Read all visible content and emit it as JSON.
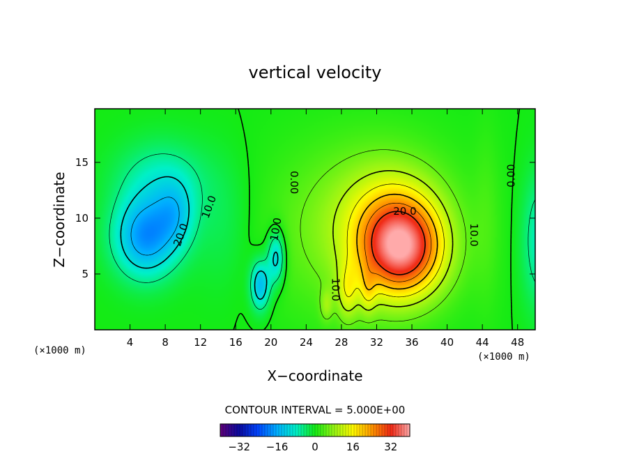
{
  "chart_data": {
    "type": "heatmap",
    "title": "vertical velocity",
    "xlabel": "X−coordinate",
    "ylabel": "Z−coordinate",
    "x_unit": "(×1000 m)",
    "xlim": [
      0,
      50
    ],
    "ylim": [
      0,
      19.8
    ],
    "x_ticks": [
      4,
      8,
      12,
      16,
      20,
      24,
      28,
      32,
      36,
      40,
      44,
      48
    ],
    "y_ticks": [
      5,
      10,
      15
    ],
    "contour_interval_text": "CONTOUR INTERVAL = 5.000E+00",
    "contour_interval": 5.0,
    "colorbar": {
      "range": [
        -40,
        40
      ],
      "ticks": [
        -32,
        -16,
        0,
        16,
        32
      ],
      "tick_labels": [
        "−32",
        "−16",
        "0",
        "16",
        "32"
      ]
    },
    "contour_labels": [
      {
        "text": "20.0",
        "x": 9.8,
        "z": 8.5,
        "rotate": -70
      },
      {
        "text": "10.0",
        "x": 13.0,
        "z": 11.0,
        "rotate": -70
      },
      {
        "text": "10.0",
        "x": 20.6,
        "z": 9.0,
        "rotate": -80
      },
      {
        "text": "0.00",
        "x": 22.6,
        "z": 13.2,
        "rotate": 90
      },
      {
        "text": "20.0",
        "x": 35.2,
        "z": 10.6,
        "rotate": 0
      },
      {
        "text": "10.0",
        "x": 43.0,
        "z": 8.5,
        "rotate": 90
      },
      {
        "text": "10.0",
        "x": 27.3,
        "z": 3.6,
        "rotate": 90
      },
      {
        "text": "0.00",
        "x": 47.3,
        "z": 13.8,
        "rotate": -90
      }
    ],
    "field_features": [
      {
        "kind": "downdraft",
        "x": 6.0,
        "z": 8.5,
        "peak": -22
      },
      {
        "kind": "downdraft",
        "x": 9.0,
        "z": 10.0,
        "peak": -20
      },
      {
        "kind": "downdraft",
        "x": 18.8,
        "z": 4.2,
        "peak": -16
      },
      {
        "kind": "downdraft",
        "x": 20.6,
        "z": 6.5,
        "peak": -15
      },
      {
        "kind": "updraft",
        "x": 34.8,
        "z": 7.0,
        "peak": 34
      },
      {
        "kind": "updraft",
        "x": 28.8,
        "z": 3.5,
        "peak": 12
      },
      {
        "kind": "downdraft",
        "x": 50.0,
        "z": 8.0,
        "peak": -6
      }
    ]
  }
}
